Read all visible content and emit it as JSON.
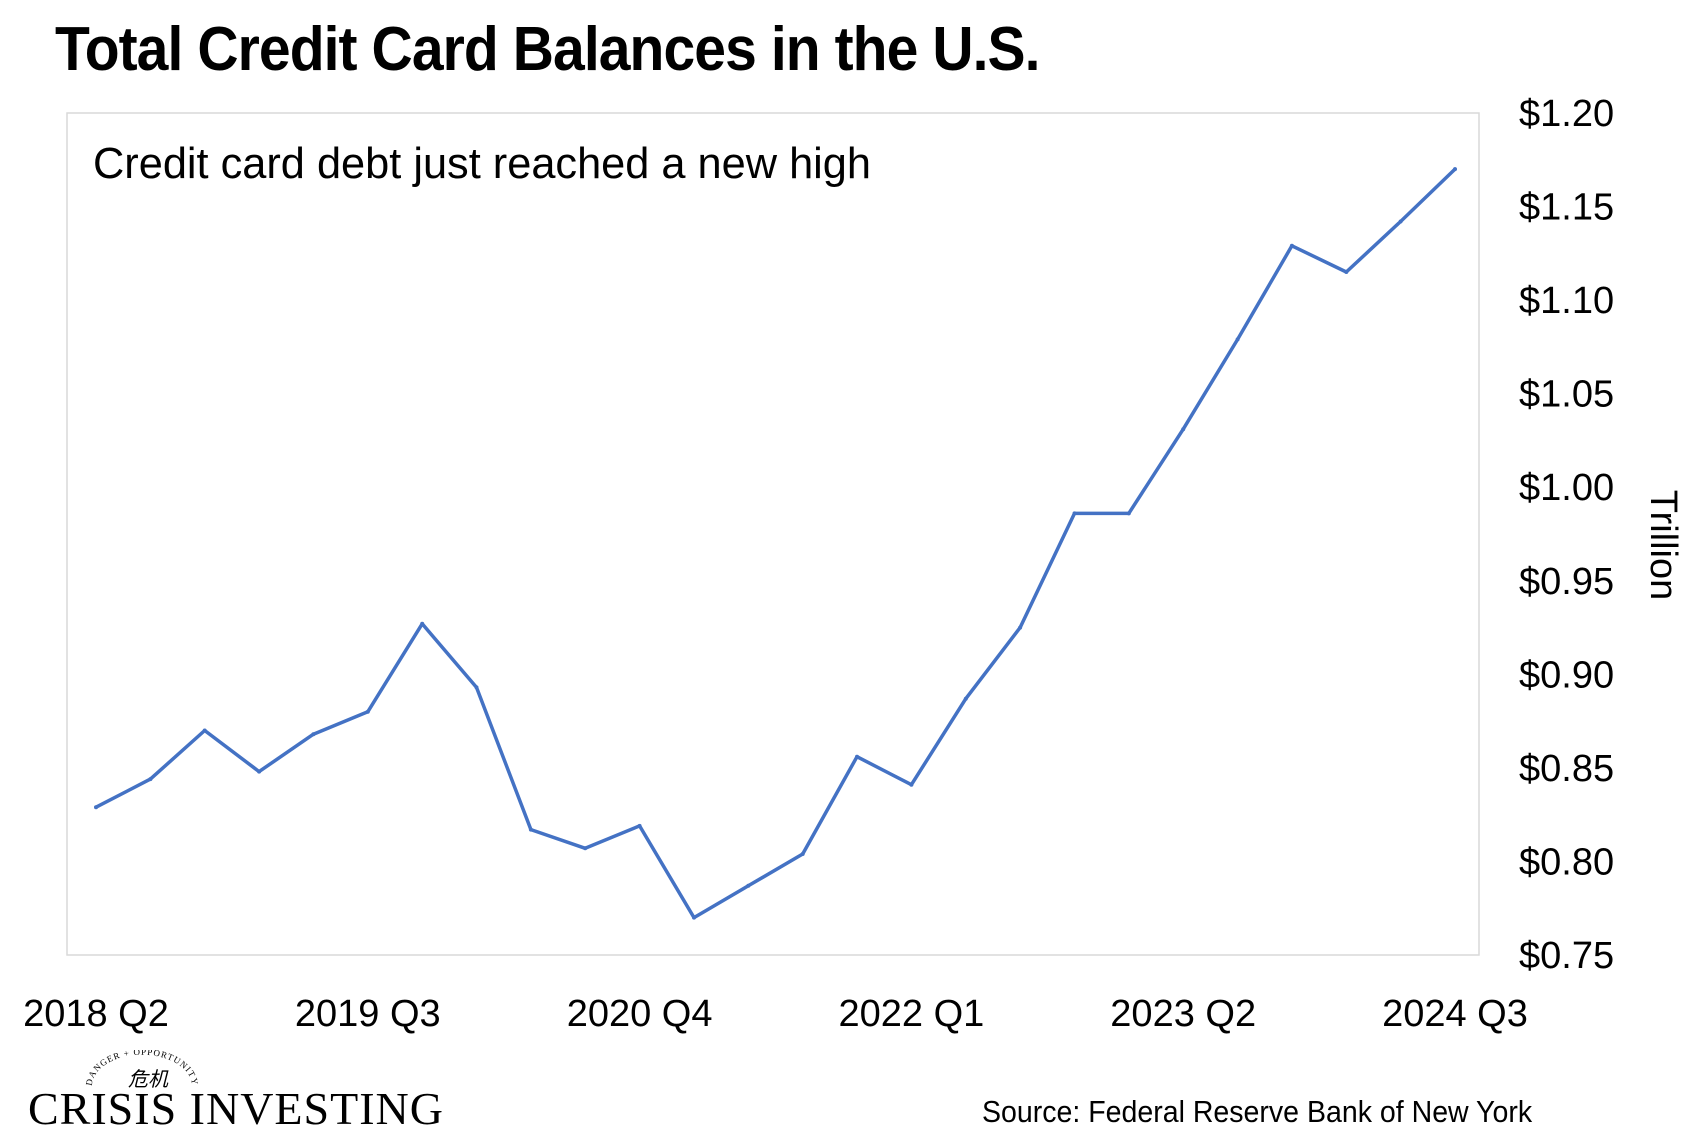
{
  "header": {
    "title": "Total Credit Card Balances in the U.S."
  },
  "logo": {
    "top_text": "DANGER + OPPORTUNITY",
    "glyphs": "危机",
    "name": "CRISIS INVESTING"
  },
  "footer": {
    "source": "Source: Federal Reserve Bank of New York"
  },
  "colors": {
    "line": "#4472C4",
    "border": "#d9d9d9"
  },
  "chart_data": {
    "type": "line",
    "annotation": "Credit card debt just reached a new high",
    "ylabel": "Trillion",
    "ylim": [
      0.75,
      1.2
    ],
    "y_ticks": [
      1.2,
      1.15,
      1.1,
      1.05,
      1.0,
      0.95,
      0.9,
      0.85,
      0.8,
      0.75
    ],
    "y_tick_labels": [
      "$1.20",
      "$1.15",
      "$1.10",
      "$1.05",
      "$1.00",
      "$0.95",
      "$0.90",
      "$0.85",
      "$0.80",
      "$0.75"
    ],
    "y_axis_position": "right",
    "grid": false,
    "x_tick_labels": [
      "2018 Q2",
      "2019 Q3",
      "2020 Q4",
      "2022 Q1",
      "2023 Q2",
      "2024 Q3"
    ],
    "x_tick_indices": [
      0,
      5,
      10,
      15,
      20,
      25
    ],
    "x": [
      "2018 Q2",
      "2018 Q3",
      "2018 Q4",
      "2019 Q1",
      "2019 Q2",
      "2019 Q3",
      "2019 Q4",
      "2020 Q1",
      "2020 Q2",
      "2020 Q3",
      "2020 Q4",
      "2021 Q1",
      "2021 Q2",
      "2021 Q3",
      "2021 Q4",
      "2022 Q1",
      "2022 Q2",
      "2022 Q3",
      "2022 Q4",
      "2023 Q1",
      "2023 Q2",
      "2023 Q3",
      "2023 Q4",
      "2024 Q1",
      "2024 Q2",
      "2024 Q3"
    ],
    "series": [
      {
        "values": [
          0.829,
          0.844,
          0.87,
          0.848,
          0.868,
          0.88,
          0.927,
          0.893,
          0.817,
          0.807,
          0.819,
          0.77,
          0.787,
          0.804,
          0.856,
          0.841,
          0.887,
          0.925,
          0.986,
          0.986,
          1.031,
          1.079,
          1.129,
          1.115,
          1.142,
          1.17
        ]
      }
    ]
  }
}
